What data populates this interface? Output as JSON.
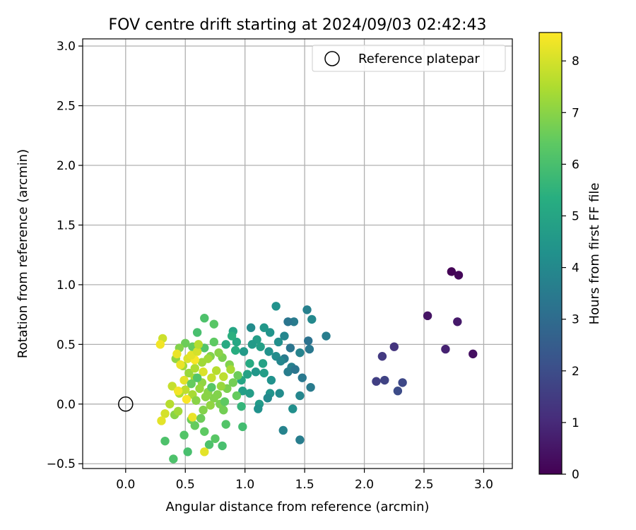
{
  "chart_data": {
    "type": "scatter",
    "title": "FOV centre drift starting at 2024/09/03 02:42:43",
    "xlabel": "Angular distance from reference (arcmin)",
    "ylabel": "Rotation from reference (arcmin)",
    "xlim": [
      -0.36,
      3.24
    ],
    "ylim": [
      -0.54,
      3.06
    ],
    "xticks": [
      0.0,
      0.5,
      1.0,
      1.5,
      2.0,
      2.5,
      3.0
    ],
    "xtick_labels": [
      "0.0",
      "0.5",
      "1.0",
      "1.5",
      "2.0",
      "2.5",
      "3.0"
    ],
    "yticks": [
      -0.5,
      0.0,
      0.5,
      1.0,
      1.5,
      2.0,
      2.5,
      3.0
    ],
    "ytick_labels": [
      "−0.5",
      "0.0",
      "0.5",
      "1.0",
      "1.5",
      "2.0",
      "2.5",
      "3.0"
    ],
    "grid": true,
    "legend": {
      "placement": "top-right",
      "entries": [
        "Reference platepar"
      ]
    },
    "colorbar": {
      "label": "Hours from first FF file",
      "range": [
        0,
        8.55
      ],
      "ticks": [
        0,
        1,
        2,
        3,
        4,
        5,
        6,
        7,
        8
      ],
      "tick_labels": [
        "0",
        "1",
        "2",
        "3",
        "4",
        "5",
        "6",
        "7",
        "8"
      ],
      "colormap": "viridis"
    },
    "reference": {
      "x": 0.0,
      "y": 0.0
    },
    "points": [
      [
        2.73,
        1.11,
        0.05
      ],
      [
        2.79,
        1.08,
        0.15
      ],
      [
        2.53,
        0.74,
        0.45
      ],
      [
        2.78,
        0.69,
        0.6
      ],
      [
        2.68,
        0.46,
        0.8
      ],
      [
        2.91,
        0.42,
        0.35
      ],
      [
        2.25,
        0.48,
        1.3
      ],
      [
        2.15,
        0.4,
        1.45
      ],
      [
        2.1,
        0.19,
        1.6
      ],
      [
        2.17,
        0.2,
        1.7
      ],
      [
        2.32,
        0.18,
        1.85
      ],
      [
        2.28,
        0.11,
        1.95
      ],
      [
        1.56,
        0.71,
        4.0
      ],
      [
        1.68,
        0.57,
        3.6
      ],
      [
        1.52,
        0.79,
        3.7
      ],
      [
        1.26,
        0.82,
        4.3
      ],
      [
        1.41,
        0.69,
        3.5
      ],
      [
        1.36,
        0.69,
        3.3
      ],
      [
        1.33,
        0.57,
        3.9
      ],
      [
        1.53,
        0.53,
        3.2
      ],
      [
        1.54,
        0.46,
        3.4
      ],
      [
        1.46,
        0.43,
        3.8
      ],
      [
        1.38,
        0.47,
        3.3
      ],
      [
        1.28,
        0.52,
        4.2
      ],
      [
        1.21,
        0.6,
        4.4
      ],
      [
        1.16,
        0.64,
        4.5
      ],
      [
        1.05,
        0.64,
        4.1
      ],
      [
        1.1,
        0.54,
        4.7
      ],
      [
        1.06,
        0.5,
        4.6
      ],
      [
        1.13,
        0.48,
        4.8
      ],
      [
        1.2,
        0.44,
        4.3
      ],
      [
        1.26,
        0.4,
        4.1
      ],
      [
        1.33,
        0.38,
        3.5
      ],
      [
        1.3,
        0.36,
        3.9
      ],
      [
        1.39,
        0.31,
        3.7
      ],
      [
        1.36,
        0.27,
        3.6
      ],
      [
        1.48,
        0.22,
        3.4
      ],
      [
        1.42,
        0.29,
        3.3
      ],
      [
        1.55,
        0.14,
        3.5
      ],
      [
        1.46,
        0.07,
        3.9
      ],
      [
        1.4,
        -0.04,
        4.2
      ],
      [
        1.32,
        -0.22,
        3.8
      ],
      [
        1.46,
        -0.3,
        3.6
      ],
      [
        1.29,
        0.09,
        4.1
      ],
      [
        1.21,
        0.09,
        4.4
      ],
      [
        1.19,
        0.05,
        4.0
      ],
      [
        1.12,
        0.0,
        4.6
      ],
      [
        1.11,
        -0.04,
        4.3
      ],
      [
        1.04,
        0.09,
        4.7
      ],
      [
        0.98,
        0.11,
        4.8
      ],
      [
        1.02,
        0.25,
        4.9
      ],
      [
        1.09,
        0.27,
        4.5
      ],
      [
        1.15,
        0.34,
        4.9
      ],
      [
        1.04,
        0.34,
        5.2
      ],
      [
        0.97,
        0.2,
        5.0
      ],
      [
        0.99,
        0.44,
        4.6
      ],
      [
        0.93,
        0.52,
        5.1
      ],
      [
        0.9,
        0.61,
        5.0
      ],
      [
        0.84,
        0.5,
        5.2
      ],
      [
        0.89,
        0.57,
        5.4
      ],
      [
        0.92,
        0.45,
        5.3
      ],
      [
        1.22,
        0.2,
        4.3
      ],
      [
        1.16,
        0.26,
        4.7
      ],
      [
        0.66,
        0.72,
        6.1
      ],
      [
        0.74,
        0.67,
        6.3
      ],
      [
        0.6,
        0.6,
        6.0
      ],
      [
        0.74,
        0.52,
        6.4
      ],
      [
        0.66,
        0.47,
        6.2
      ],
      [
        0.56,
        0.48,
        6.5
      ],
      [
        0.5,
        0.51,
        6.6
      ],
      [
        0.45,
        0.47,
        6.9
      ],
      [
        0.42,
        0.38,
        7.1
      ],
      [
        0.48,
        0.32,
        7.3
      ],
      [
        0.53,
        0.26,
        7.2
      ],
      [
        0.58,
        0.22,
        7.4
      ],
      [
        0.64,
        0.18,
        7.1
      ],
      [
        0.69,
        0.1,
        7.0
      ],
      [
        0.74,
        0.05,
        6.9
      ],
      [
        0.79,
        0.0,
        6.8
      ],
      [
        0.82,
        -0.05,
        6.7
      ],
      [
        0.84,
        -0.17,
        6.2
      ],
      [
        0.81,
        -0.35,
        6.0
      ],
      [
        0.7,
        -0.34,
        6.1
      ],
      [
        0.75,
        -0.29,
        6.3
      ],
      [
        0.66,
        -0.23,
        6.4
      ],
      [
        0.58,
        -0.18,
        6.5
      ],
      [
        0.55,
        -0.13,
        6.6
      ],
      [
        0.49,
        -0.26,
        6.2
      ],
      [
        0.52,
        -0.4,
        6.0
      ],
      [
        0.33,
        -0.31,
        6.1
      ],
      [
        0.4,
        -0.46,
        6.1
      ],
      [
        0.41,
        -0.09,
        7.0
      ],
      [
        0.44,
        -0.06,
        7.3
      ],
      [
        0.37,
        0.0,
        7.6
      ],
      [
        0.33,
        -0.08,
        8.0
      ],
      [
        0.3,
        -0.14,
        8.2
      ],
      [
        0.39,
        0.15,
        7.8
      ],
      [
        0.45,
        0.09,
        7.5
      ],
      [
        0.5,
        0.12,
        7.7
      ],
      [
        0.56,
        0.08,
        7.4
      ],
      [
        0.62,
        0.13,
        7.2
      ],
      [
        0.59,
        0.03,
        7.0
      ],
      [
        0.65,
        -0.05,
        6.9
      ],
      [
        0.71,
        -0.01,
        7.1
      ],
      [
        0.77,
        0.08,
        6.9
      ],
      [
        0.85,
        0.13,
        6.8
      ],
      [
        0.9,
        0.18,
        6.7
      ],
      [
        0.94,
        0.24,
        6.6
      ],
      [
        0.87,
        0.33,
        6.9
      ],
      [
        0.81,
        0.39,
        6.8
      ],
      [
        0.78,
        0.43,
        7.0
      ],
      [
        0.71,
        0.4,
        6.9
      ],
      [
        0.64,
        0.35,
        7.3
      ],
      [
        0.58,
        0.3,
        7.5
      ],
      [
        0.52,
        0.38,
        8.1
      ],
      [
        0.46,
        0.33,
        8.3
      ],
      [
        0.31,
        0.55,
        7.9
      ],
      [
        0.29,
        0.5,
        8.4
      ],
      [
        0.43,
        0.42,
        8.3
      ],
      [
        0.58,
        0.37,
        8.5
      ],
      [
        0.55,
        0.41,
        8.2
      ],
      [
        0.6,
        0.44,
        8.0
      ],
      [
        0.65,
        0.27,
        8.1
      ],
      [
        0.49,
        0.2,
        8.2
      ],
      [
        0.44,
        0.11,
        8.4
      ],
      [
        0.51,
        0.04,
        8.5
      ],
      [
        0.56,
        -0.11,
        8.3
      ],
      [
        0.66,
        -0.4,
        8.2
      ],
      [
        0.72,
        0.22,
        7.8
      ],
      [
        0.76,
        0.28,
        7.6
      ],
      [
        0.82,
        0.23,
        7.7
      ],
      [
        0.88,
        0.29,
        7.4
      ],
      [
        0.93,
        0.07,
        6.5
      ],
      [
        0.83,
        0.02,
        6.4
      ],
      [
        0.97,
        -0.02,
        5.6
      ],
      [
        0.98,
        -0.19,
        5.9
      ],
      [
        0.63,
        -0.12,
        6.6
      ],
      [
        0.67,
        0.06,
        7.0
      ],
      [
        0.61,
        0.5,
        7.6
      ],
      [
        0.69,
        0.38,
        7.3
      ],
      [
        0.8,
        0.15,
        7.2
      ],
      [
        0.72,
        0.14,
        6.3
      ],
      [
        0.6,
        0.22,
        6.2
      ],
      [
        0.55,
        0.17,
        6.5
      ]
    ]
  }
}
